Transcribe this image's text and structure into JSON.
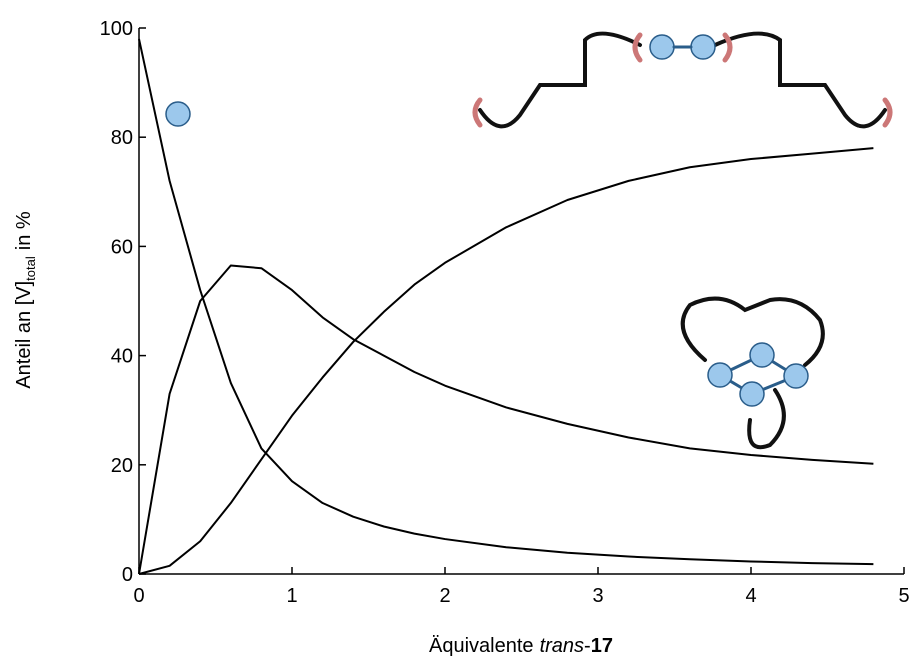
{
  "chart_data": {
    "type": "line",
    "xlabel": [
      "Äquivalente",
      "trans",
      "-",
      "17"
    ],
    "ylabel": [
      "Anteil an [V]",
      "total",
      "in %"
    ],
    "x": [
      0,
      0.2,
      0.4,
      0.6,
      0.8,
      1,
      1.2,
      1.4,
      1.6,
      1.8,
      2,
      2.4,
      2.8,
      3.2,
      3.6,
      4,
      4.4,
      4.8
    ],
    "series": [
      {
        "color": "#000000",
        "values": [
          98,
          72,
          52,
          35,
          23,
          17,
          13,
          10.5,
          8.7,
          7.4,
          6.4,
          4.9,
          3.9,
          3.2,
          2.7,
          2.3,
          2.0,
          1.8
        ]
      },
      {
        "color": "#000000",
        "values": [
          0,
          33,
          50,
          56.5,
          56,
          52,
          47,
          43,
          40,
          37,
          34.5,
          30.5,
          27.5,
          25,
          23,
          21.8,
          20.9,
          20.2
        ]
      },
      {
        "color": "#000000",
        "values": [
          0,
          1.5,
          6,
          13,
          21,
          29,
          36,
          42.5,
          48,
          53,
          57,
          63.5,
          68.5,
          72,
          74.5,
          76,
          77,
          78
        ]
      }
    ],
    "xlim": [
      0,
      5
    ],
    "ylim": [
      0,
      100
    ],
    "xticks": [
      0,
      1,
      2,
      3,
      4,
      5
    ],
    "yticks": [
      0,
      20,
      40,
      60,
      80,
      100
    ]
  }
}
